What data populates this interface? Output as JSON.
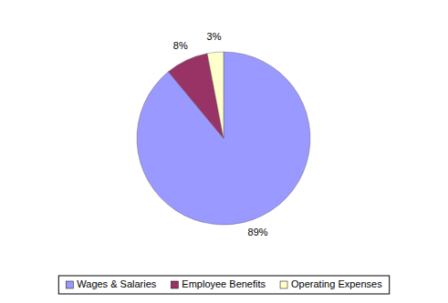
{
  "chart_data": {
    "type": "pie",
    "categories": [
      "Wages & Salaries",
      "Employee Benefits",
      "Operating Expenses"
    ],
    "values": [
      89,
      8,
      3
    ],
    "value_labels": [
      "89%",
      "8%",
      "3%"
    ],
    "colors": [
      "#9999ff",
      "#993366",
      "#ffffcc"
    ],
    "data_labels": true,
    "legend": "bottom"
  }
}
